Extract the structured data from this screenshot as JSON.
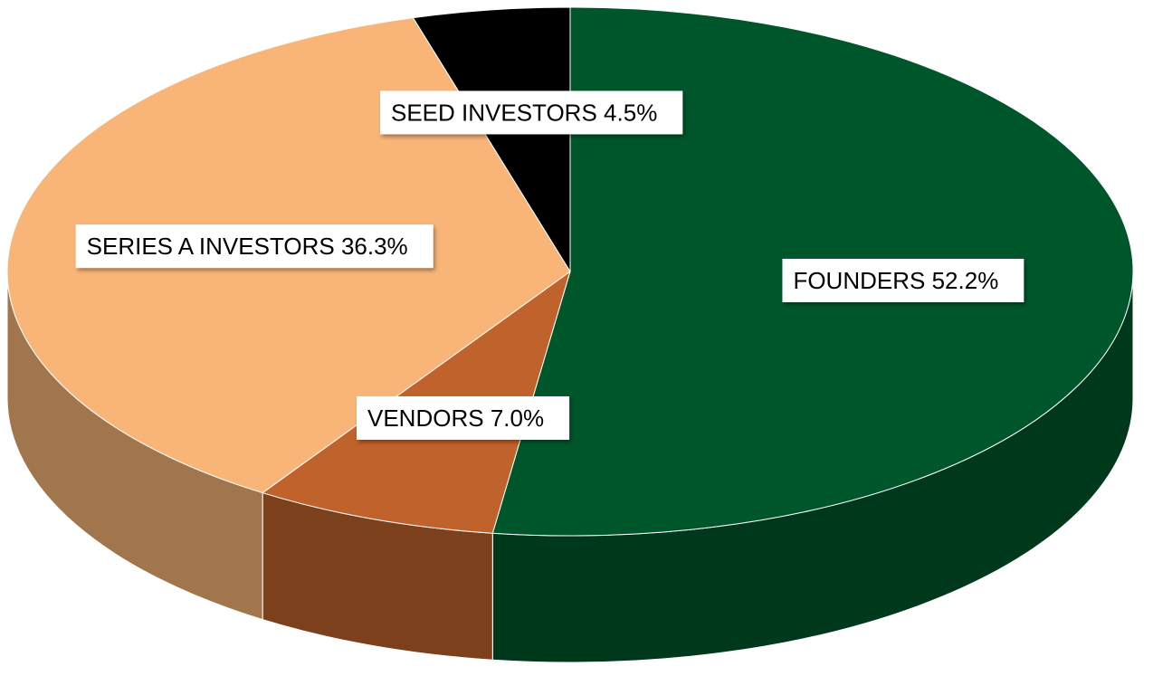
{
  "chart_data": {
    "type": "pie",
    "categories": [
      "FOUNDERS",
      "VENDORS",
      "SERIES A INVESTORS",
      "SEED INVESTORS"
    ],
    "values": [
      52.2,
      7.0,
      36.3,
      4.5
    ],
    "value_labels": [
      "52.2%",
      "7.0%",
      "36.3%",
      "4.5%"
    ],
    "colors": [
      "#00562b",
      "#c0622c",
      "#f8b577",
      "#000000"
    ]
  }
}
